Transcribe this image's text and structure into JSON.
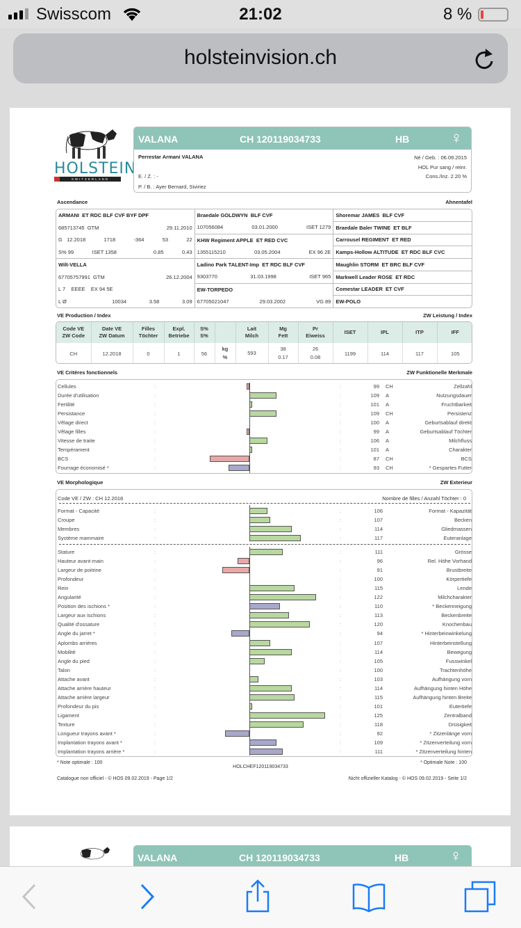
{
  "status": {
    "carrier": "Swisscom",
    "time": "21:02",
    "battery": "8 %"
  },
  "browser": {
    "url": "holsteinvision.ch"
  },
  "colors": {
    "accent": "#8fc4b8",
    "bar_pos": "#b8d8a0",
    "bar_neg": "#e8a8a8",
    "bar_star": "#a8a8cc",
    "ios_blue": "#1a7cf5",
    "battery_low": "#e5483a"
  },
  "logo": {
    "text": "HOLSTEIN",
    "sub": "SWITZERLAND"
  },
  "animal": {
    "name": "VALANA",
    "id": "CH 120119034733",
    "herdbook": "HB",
    "sex_symbol": "♀",
    "full_name": "Perrestar Armani VALANA",
    "born": "Né / Geb. : 06.09.2015",
    "breed": "HOL   Pur sang / reinr.",
    "cons": "Cons./Inz. 2.20 %",
    "ez": "E. / Z. : -",
    "pb": "P. / B. : Ayer Bernard, Siviriez"
  },
  "ascendance": {
    "title": "Ascendance",
    "title_de": "Ahnentafel",
    "left": [
      [
        [
          "ARMANI  ET RDC BLF CVF BYF DPF"
        ],
        [
          "685713745  GTM",
          "29.11.2010"
        ],
        [
          "G   12.2018",
          "1718",
          "-364",
          "53",
          "22"
        ],
        [
          "S% 99",
          "ISET 1358",
          "",
          "0.85",
          "0.43"
        ]
      ],
      [
        [
          "Wilt-VELLA"
        ],
        [
          "67705757991  GTM",
          "26.12.2004"
        ],
        [
          "L 7    EEEE    EX 94 5E"
        ],
        [
          "L Ø",
          "",
          "10034",
          "3.58",
          "3.09"
        ]
      ]
    ],
    "middle": [
      [
        [
          "Braedale GOLDWYN  BLF CVF"
        ],
        [
          "107056084",
          "03.01.2000",
          "ISET 1279"
        ]
      ],
      [
        [
          "KHW Regiment APPLE  ET RED CVC"
        ],
        [
          "1355115210",
          "03.05.2004",
          "EX 96 2E"
        ]
      ],
      [
        [
          "Ladino Park TALENT-Imp  ET RDC BLF CVF"
        ],
        [
          "9303770",
          "31.03.1998",
          "ISET 965"
        ]
      ],
      [
        [
          "EW-TORPEDO"
        ],
        [
          "67705021047",
          "29.03.2002",
          "VG 89"
        ]
      ]
    ],
    "right": [
      "Shoremar JAMES  BLF CVF",
      "Braedale Baler TWINE  ET BLF",
      "Carrousel REGIMENT  ET RED",
      "Kamps-Hollow ALTITUDE  ET RDC BLF CVC",
      "Maughlin STORM  ET BRC BLF CVF",
      "Markwell Leader ROSE  ET RDC",
      "Comestar LEADER  ET CVF",
      "EW-POLO"
    ]
  },
  "production": {
    "title": "VE Production / Index",
    "title_de": "ZW Leistung / Index",
    "headers": [
      [
        "Code VE",
        "ZW Code"
      ],
      [
        "Date VE",
        "ZW Datum"
      ],
      [
        "Filles",
        "Töchter"
      ],
      [
        "Expl.",
        "Betriebe"
      ],
      [
        "S%",
        "S%"
      ],
      [
        "",
        ""
      ],
      [
        "Lait",
        "Milch"
      ],
      [
        "Mg",
        "Fett"
      ],
      [
        "Pr",
        "Eiweiss"
      ],
      [
        "ISET",
        ""
      ],
      [
        "IPL",
        ""
      ],
      [
        "ITP",
        ""
      ],
      [
        "IFF",
        ""
      ]
    ],
    "row": [
      [
        "CH"
      ],
      [
        "12.2018"
      ],
      [
        "0"
      ],
      [
        "1"
      ],
      [
        "56"
      ],
      [
        "kg",
        "%"
      ],
      [
        "593",
        ""
      ],
      [
        "38",
        "0.17"
      ],
      [
        "26",
        "0.08"
      ],
      [
        "1199"
      ],
      [
        "114"
      ],
      [
        "117"
      ],
      [
        "105"
      ]
    ]
  },
  "functional": {
    "title": "VE Critères fonctionnels",
    "title_de": "ZW Funktionelle Merkmale",
    "rows": [
      {
        "fr": "Cellules",
        "value": 99,
        "code": "CH",
        "de": "Zellzahl"
      },
      {
        "fr": "Durée d'utilisation",
        "value": 109,
        "code": "A",
        "de": "Nutzungsdauer"
      },
      {
        "fr": "Fertilité",
        "value": 101,
        "code": "A",
        "de": "Fruchtbarkeit"
      },
      {
        "fr": "Persistance",
        "value": 109,
        "code": "CH",
        "de": "Persistenz"
      },
      {
        "fr": "Vêlage direct",
        "value": 100,
        "code": "A",
        "de": "Geburtsablauf direkt"
      },
      {
        "fr": "Vêlage filles",
        "value": 99,
        "code": "A",
        "de": "Geburtsablauf Töchter"
      },
      {
        "fr": "Vitesse de traite",
        "value": 106,
        "code": "A",
        "de": "Milchfluss"
      },
      {
        "fr": "Tempérament",
        "value": 101,
        "code": "A",
        "de": "Charakter"
      },
      {
        "fr": "BCS",
        "value": 87,
        "code": "CH",
        "de": "BCS"
      },
      {
        "fr": "Fourrage économisé *",
        "value": 93,
        "code": "CH",
        "de": "* Gespartes Futter"
      }
    ]
  },
  "morphology": {
    "title": "VE Morphologique",
    "title_de": "ZW Exterieur",
    "code": "Code VE / ZW : CH 12.2018",
    "daughters": "Nombre de filles / Anzahl Töchter : 0",
    "summary": [
      {
        "fr": "Format - Capacité",
        "value": 106,
        "de": "Format - Kapazität"
      },
      {
        "fr": "Croupe",
        "value": 107,
        "de": "Becken"
      },
      {
        "fr": "Membres",
        "value": 114,
        "de": "Gliedmassen"
      },
      {
        "fr": "Système mammaire",
        "value": 117,
        "de": "Euteranlage"
      }
    ],
    "traits": [
      {
        "fr": "Stature",
        "value": 111,
        "de": "Grösse"
      },
      {
        "fr": "Hauteur avant-main",
        "value": 96,
        "de": "Rel. Höhe Vorhand"
      },
      {
        "fr": "Largeur de poitrine",
        "value": 91,
        "de": "Brustbreite"
      },
      {
        "fr": "Profondeur",
        "value": 100,
        "de": "Körpertiefe"
      },
      {
        "fr": "Rein",
        "value": 115,
        "de": "Lende"
      },
      {
        "fr": "Angularité",
        "value": 122,
        "de": "Milchcharakter"
      },
      {
        "fr": "Position des ischions *",
        "value": 110,
        "de": "* Beckenneigung"
      },
      {
        "fr": "Largeur aux ischions",
        "value": 113,
        "de": "Beckenbreite"
      },
      {
        "fr": "Qualité d'ossature",
        "value": 120,
        "de": "Knochenbau"
      },
      {
        "fr": "Angle du jarret *",
        "value": 94,
        "de": "* Hinterbeinwinkelung"
      },
      {
        "fr": "Aplombs arrières",
        "value": 107,
        "de": "Hinterbeinstellung"
      },
      {
        "fr": "Mobilité",
        "value": 114,
        "de": "Bewegung"
      },
      {
        "fr": "Angle du pied",
        "value": 105,
        "de": "Fusswinkel"
      },
      {
        "fr": "Talon",
        "value": 100,
        "de": "Trachtenhöhe"
      },
      {
        "fr": "Attache avant",
        "value": 103,
        "de": "Aufhängung vorn"
      },
      {
        "fr": "Attache arrière hauteur",
        "value": 114,
        "de": "Aufhängung hinten Höhe"
      },
      {
        "fr": "Attache arrière largeur",
        "value": 115,
        "de": "Aufhängung hinten Breite"
      },
      {
        "fr": "Profondeur du pis",
        "value": 101,
        "de": "Eutertiefe"
      },
      {
        "fr": "Ligament",
        "value": 125,
        "de": "Zentralband"
      },
      {
        "fr": "Texture",
        "value": 118,
        "de": "Drüsigkeit"
      },
      {
        "fr": "Longueur trayons avant *",
        "value": 92,
        "de": "* Zitzenlänge vorn"
      },
      {
        "fr": "Implantation trayons avant *",
        "value": 109,
        "de": "* Zitzenverteilung vorn"
      },
      {
        "fr": "Implantation trayons arrière *",
        "value": 111,
        "de": "* Zitzenverteilung hinten"
      }
    ]
  },
  "footer": {
    "note_fr": "* Note optimale : 100",
    "note_de": "* Optimale Note : 100",
    "code": "HOLCHEF120119034733",
    "cat_fr": "Catalogue non officiel  -  © HOS 09.02.2019  -  Page 1/2",
    "cat_de": "Nicht offizieller Katalog  -  © HOS 09.02.2019  -  Seite 1/2"
  }
}
